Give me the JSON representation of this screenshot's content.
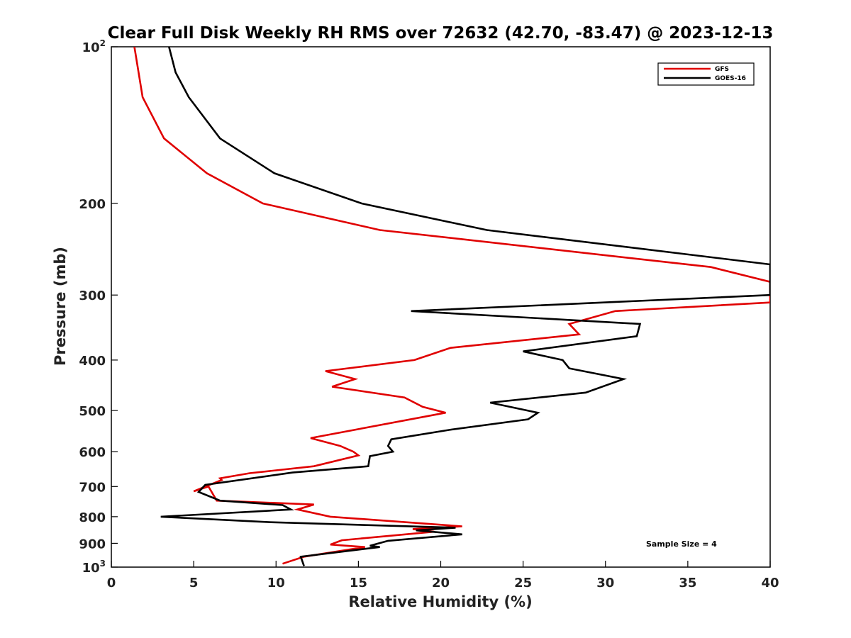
{
  "chart_data": {
    "type": "line",
    "title": "Clear Full Disk Weekly RH RMS over 72632 (42.70, -83.47) @ 2023-12-13",
    "xlabel": "Relative Humidity (%)",
    "ylabel": "Pressure (mb)",
    "xlim": [
      0,
      40
    ],
    "ylim": [
      100,
      1000
    ],
    "y_scale": "log",
    "y_inverted": true,
    "grid": false,
    "legend_position": "top-right",
    "x_ticks": [
      "0",
      "5",
      "10",
      "15",
      "20",
      "25",
      "30",
      "35",
      "40"
    ],
    "y_ticks": [
      {
        "value": 100,
        "base": "10",
        "exp": "2"
      },
      {
        "value": 200,
        "label": "200"
      },
      {
        "value": 300,
        "label": "300"
      },
      {
        "value": 400,
        "label": "400"
      },
      {
        "value": 500,
        "label": "500"
      },
      {
        "value": 600,
        "label": "600"
      },
      {
        "value": 700,
        "label": "700"
      },
      {
        "value": 800,
        "label": "800"
      },
      {
        "value": 900,
        "label": "900"
      },
      {
        "value": 1000,
        "base": "10",
        "exp": "3"
      }
    ],
    "annotation": "Sample Size = 4",
    "series": [
      {
        "name": "GFS",
        "color": "#e00000",
        "points": [
          [
            1.4,
            100
          ],
          [
            1.9,
            125
          ],
          [
            3.2,
            150
          ],
          [
            5.8,
            175
          ],
          [
            9.2,
            200
          ],
          [
            16.3,
            225
          ],
          [
            36.4,
            265
          ],
          [
            40,
            283
          ],
          [
            40,
            310
          ],
          [
            30.6,
            322
          ],
          [
            27.8,
            341
          ],
          [
            28.4,
            357
          ],
          [
            20.6,
            379
          ],
          [
            18.4,
            400
          ],
          [
            13.0,
            420
          ],
          [
            14.8,
            435
          ],
          [
            13.4,
            450
          ],
          [
            17.8,
            472
          ],
          [
            18.9,
            492
          ],
          [
            20.3,
            505
          ],
          [
            12.1,
            565
          ],
          [
            13.9,
            585
          ],
          [
            14.7,
            600
          ],
          [
            15.0,
            610
          ],
          [
            12.3,
            640
          ],
          [
            8.4,
            660
          ],
          [
            6.6,
            675
          ],
          [
            6.7,
            680
          ],
          [
            5.0,
            715
          ],
          [
            5.9,
            700
          ],
          [
            6.4,
            745
          ],
          [
            12.3,
            758
          ],
          [
            11.3,
            775
          ],
          [
            13.3,
            800
          ],
          [
            21.3,
            835
          ],
          [
            18.3,
            845
          ],
          [
            19.6,
            855
          ],
          [
            14.0,
            888
          ],
          [
            13.3,
            905
          ],
          [
            15.4,
            915
          ],
          [
            11.7,
            955
          ],
          [
            10.4,
            985
          ]
        ]
      },
      {
        "name": "GOES-16",
        "color": "#000000",
        "points": [
          [
            3.5,
            100
          ],
          [
            3.9,
            112
          ],
          [
            4.7,
            125
          ],
          [
            6.6,
            150
          ],
          [
            9.9,
            175
          ],
          [
            15.2,
            200
          ],
          [
            22.8,
            225
          ],
          [
            40,
            262
          ],
          [
            40,
            300
          ],
          [
            18.2,
            322
          ],
          [
            32.1,
            341
          ],
          [
            31.9,
            360
          ],
          [
            25.0,
            385
          ],
          [
            27.4,
            400
          ],
          [
            27.8,
            415
          ],
          [
            31.1,
            435
          ],
          [
            28.8,
            462
          ],
          [
            23.0,
            483
          ],
          [
            25.9,
            505
          ],
          [
            25.3,
            520
          ],
          [
            20.5,
            545
          ],
          [
            17.0,
            568
          ],
          [
            16.8,
            585
          ],
          [
            17.1,
            600
          ],
          [
            15.7,
            612
          ],
          [
            15.6,
            640
          ],
          [
            11.0,
            658
          ],
          [
            5.7,
            695
          ],
          [
            5.3,
            717
          ],
          [
            6.6,
            745
          ],
          [
            10.4,
            760
          ],
          [
            10.9,
            775
          ],
          [
            3.0,
            800
          ],
          [
            9.7,
            820
          ],
          [
            20.9,
            840
          ],
          [
            18.5,
            850
          ],
          [
            21.3,
            865
          ],
          [
            16.8,
            890
          ],
          [
            15.7,
            910
          ],
          [
            16.3,
            915
          ],
          [
            11.5,
            955
          ],
          [
            11.7,
            995
          ]
        ]
      }
    ]
  }
}
